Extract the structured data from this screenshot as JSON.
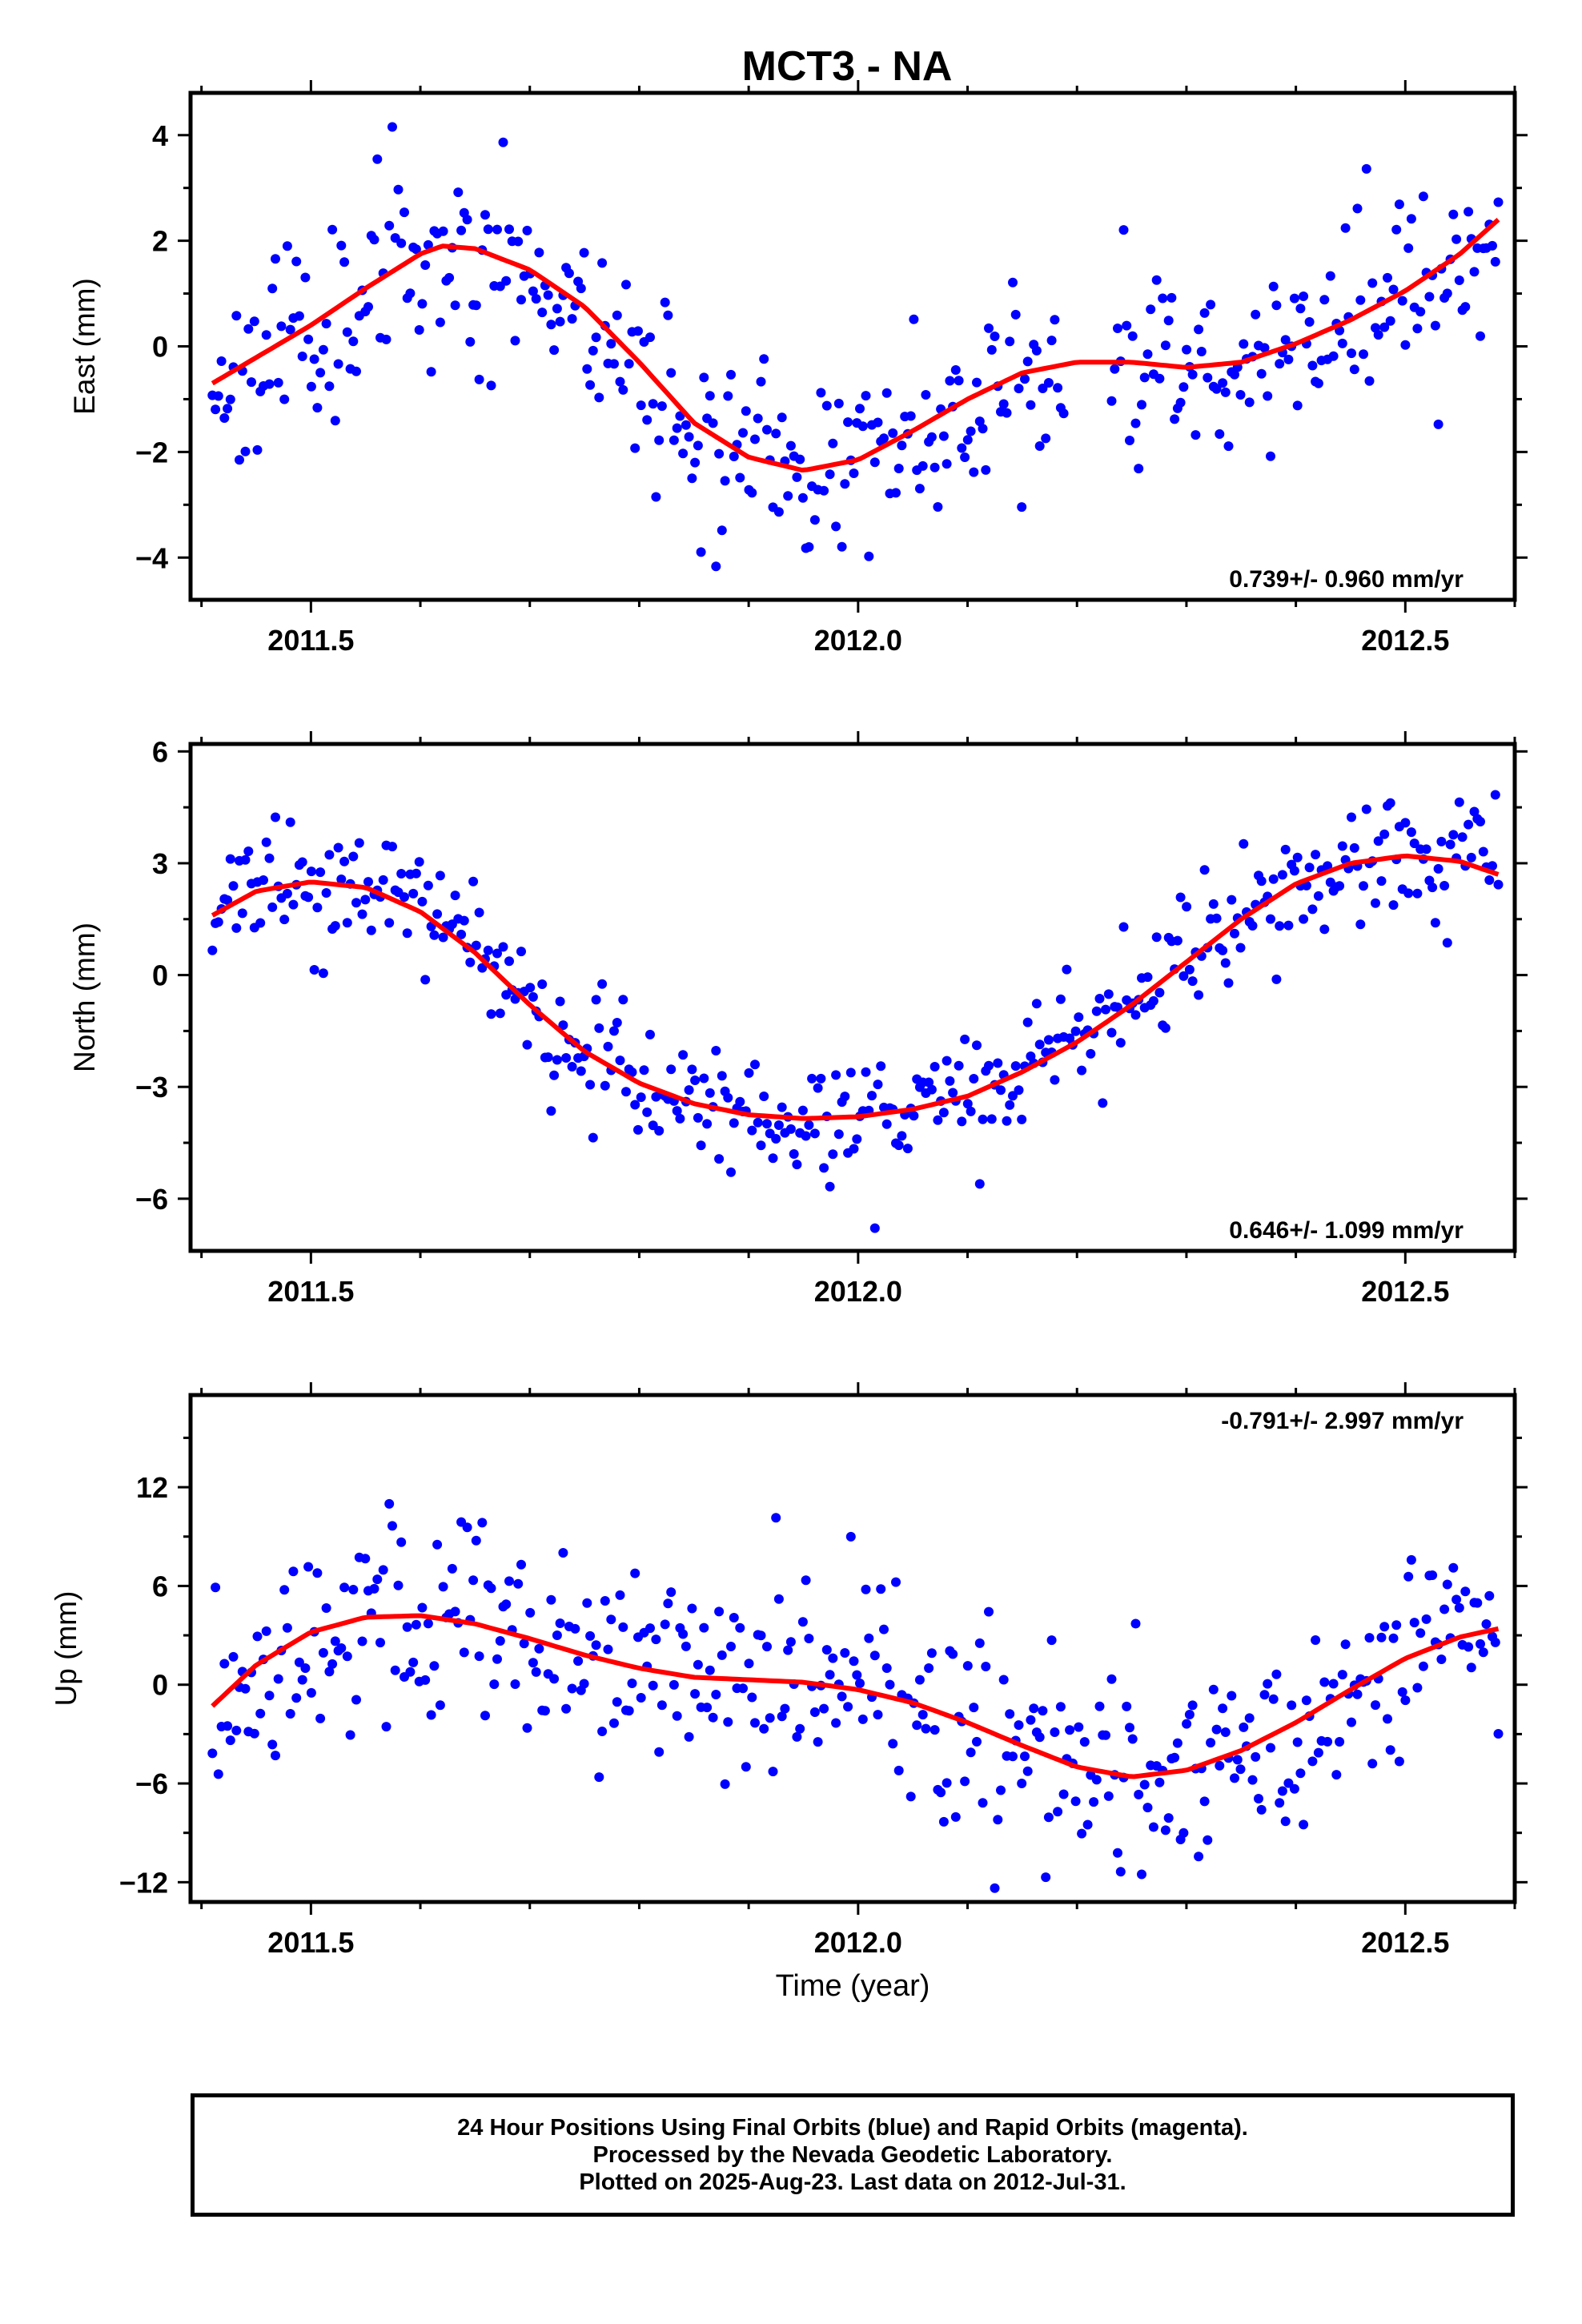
{
  "title": "MCT3 - NA",
  "colors": {
    "points": "#0000ff",
    "fit": "#ff0000",
    "frame": "#000000"
  },
  "xlabel": "Time (year)",
  "caption_lines": [
    "24 Hour Positions Using Final Orbits (blue) and Rapid Orbits (magenta).",
    "Processed by the Nevada Geodetic Laboratory.",
    "Plotted on 2025-Aug-23. Last data on 2012-Jul-31."
  ],
  "chart_data": [
    {
      "type": "scatter",
      "ylabel": "East (mm)",
      "rate_label": "0.739+/- 0.960 mm/yr",
      "xlim": [
        2011.39,
        2012.6
      ],
      "ylim": [
        -4.8,
        4.8
      ],
      "xticks": [
        2011.5,
        2012.0,
        2012.5
      ],
      "yticks": [
        -4,
        -2,
        0,
        2,
        4
      ],
      "ytick_labels": [
        "−4",
        "−2",
        "0",
        "2",
        "4"
      ],
      "xtick_labels": [
        "2011.5",
        "2012.0",
        "2012.5"
      ],
      "fit": {
        "x": [
          2011.41,
          2011.5,
          2011.55,
          2011.6,
          2011.62,
          2011.65,
          2011.7,
          2011.75,
          2011.8,
          2011.85,
          2011.9,
          2011.95,
          2012.0,
          2012.05,
          2012.1,
          2012.15,
          2012.2,
          2012.25,
          2012.3,
          2012.35,
          2012.4,
          2012.45,
          2012.5,
          2012.55,
          2012.585
        ],
        "y": [
          -0.7,
          0.4,
          1.1,
          1.75,
          1.9,
          1.85,
          1.45,
          0.75,
          -0.3,
          -1.45,
          -2.1,
          -2.35,
          -2.15,
          -1.6,
          -1.0,
          -0.5,
          -0.3,
          -0.3,
          -0.4,
          -0.3,
          0.05,
          0.5,
          1.05,
          1.75,
          2.4
        ]
      },
      "sigma": 1.15,
      "seed": 11
    },
    {
      "type": "scatter",
      "ylabel": "North (mm)",
      "rate_label": "0.646+/- 1.099 mm/yr",
      "xlim": [
        2011.39,
        2012.6
      ],
      "ylim": [
        -7.4,
        6.2
      ],
      "xticks": [
        2011.5,
        2012.0,
        2012.5
      ],
      "yticks": [
        -6,
        -3,
        0,
        3,
        6
      ],
      "ytick_labels": [
        "−6",
        "−3",
        "0",
        "3",
        "6"
      ],
      "xtick_labels": [
        "2011.5",
        "2012.0",
        "2012.5"
      ],
      "fit": {
        "x": [
          2011.41,
          2011.45,
          2011.5,
          2011.55,
          2011.6,
          2011.65,
          2011.7,
          2011.75,
          2011.8,
          2011.85,
          2011.9,
          2011.95,
          2012.0,
          2012.05,
          2012.1,
          2012.15,
          2012.2,
          2012.25,
          2012.3,
          2012.35,
          2012.4,
          2012.45,
          2012.5,
          2012.55,
          2012.585
        ],
        "y": [
          1.6,
          2.25,
          2.5,
          2.35,
          1.7,
          0.6,
          -0.8,
          -2.05,
          -2.9,
          -3.45,
          -3.75,
          -3.85,
          -3.8,
          -3.6,
          -3.25,
          -2.6,
          -1.8,
          -0.8,
          0.35,
          1.5,
          2.45,
          3.0,
          3.2,
          3.05,
          2.7
        ]
      },
      "sigma": 1.05,
      "seed": 23
    },
    {
      "type": "scatter",
      "ylabel": "Up (mm)",
      "rate_label": "-0.791+/- 2.997 mm/yr",
      "xlim": [
        2011.39,
        2012.6
      ],
      "ylim": [
        -13.2,
        17.6
      ],
      "xticks": [
        2011.5,
        2012.0,
        2012.5
      ],
      "yticks": [
        -12,
        -6,
        0,
        6,
        12
      ],
      "ytick_labels": [
        "−12",
        "−6",
        "0",
        "6",
        "12"
      ],
      "xtick_labels": [
        "2011.5",
        "2012.0",
        "2012.5"
      ],
      "fit": {
        "x": [
          2011.41,
          2011.45,
          2011.5,
          2011.55,
          2011.6,
          2011.65,
          2011.7,
          2011.75,
          2011.8,
          2011.85,
          2011.9,
          2011.95,
          2012.0,
          2012.05,
          2012.1,
          2012.15,
          2012.2,
          2012.25,
          2012.3,
          2012.35,
          2012.4,
          2012.45,
          2012.5,
          2012.55,
          2012.585
        ],
        "y": [
          -1.3,
          1.2,
          3.2,
          4.1,
          4.2,
          3.7,
          2.8,
          1.8,
          1.0,
          0.45,
          0.3,
          0.15,
          -0.3,
          -1.1,
          -2.3,
          -3.7,
          -5.0,
          -5.6,
          -5.2,
          -4.0,
          -2.3,
          -0.3,
          1.6,
          2.9,
          3.4
        ]
      },
      "sigma": 4.2,
      "seed": 37
    }
  ]
}
